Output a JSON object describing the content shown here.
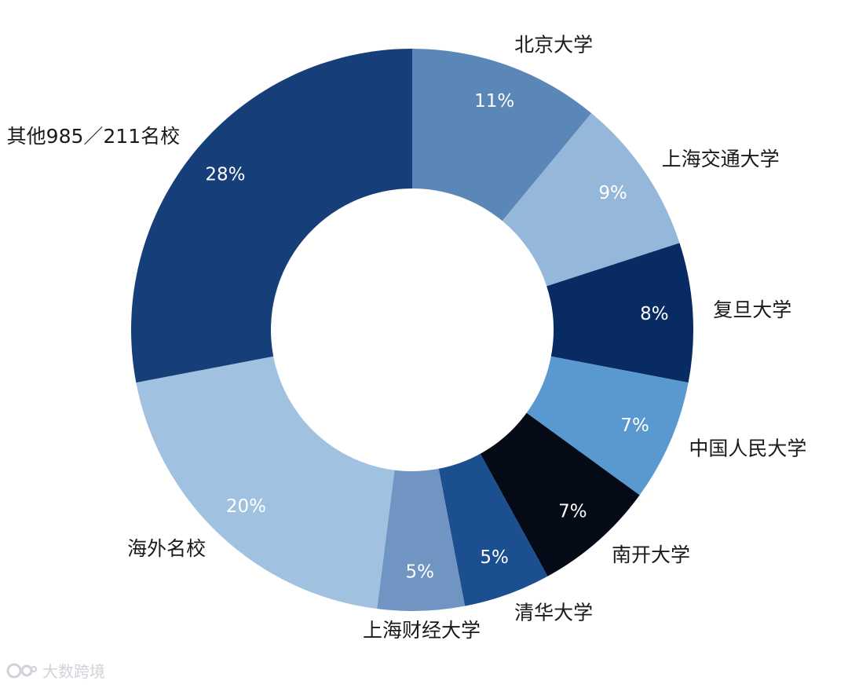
{
  "chart_data": {
    "type": "pie",
    "donut": true,
    "slices": [
      {
        "label": "北京大学",
        "value": 11,
        "value_label": "11%",
        "color": "#5b86b8"
      },
      {
        "label": "上海交通大学",
        "value": 9,
        "value_label": "9%",
        "color": "#95b8da"
      },
      {
        "label": "复旦大学",
        "value": 8,
        "value_label": "8%",
        "color": "#082b64"
      },
      {
        "label": "中国人民大学",
        "value": 7,
        "value_label": "7%",
        "color": "#5a99d0"
      },
      {
        "label": "南开大学",
        "value": 7,
        "value_label": "7%",
        "color": "#040a16"
      },
      {
        "label": "清华大学",
        "value": 5,
        "value_label": "5%",
        "color": "#1c4f8f"
      },
      {
        "label": "上海财经大学",
        "value": 5,
        "value_label": "5%",
        "color": "#7095c2"
      },
      {
        "label": "海外名校",
        "value": 20,
        "value_label": "20%",
        "color": "#a1c1e0"
      },
      {
        "label": "其他985／211名校",
        "value": 28,
        "value_label": "28%",
        "color": "#163e78"
      }
    ]
  },
  "watermark": {
    "text": "大数跨境"
  }
}
